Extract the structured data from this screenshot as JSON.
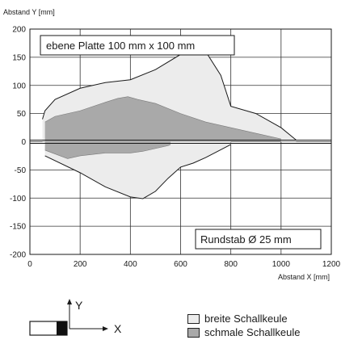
{
  "chart_data": {
    "type": "area",
    "ylabel": "Abstand Y [mm]",
    "xlabel": "Abstand X [mm]",
    "xlim": [
      0,
      1200
    ],
    "ylim": [
      -200,
      200
    ],
    "x_ticks": [
      0,
      200,
      400,
      600,
      800,
      1000,
      1200
    ],
    "y_ticks": [
      200,
      150,
      100,
      50,
      0,
      -50,
      -100,
      -150,
      -200
    ],
    "grid": true,
    "panels": [
      {
        "label": "ebene Platte 100 mm x 100 mm",
        "region": "upper",
        "series": [
          {
            "name": "breite Schallkeule",
            "x": [
              50,
              60,
              100,
              200,
              300,
              400,
              500,
              600,
              650,
              700,
              760,
              800,
              900,
              1000,
              1060
            ],
            "y": [
              40,
              55,
              75,
              95,
              105,
              110,
              128,
              155,
              163,
              160,
              118,
              63,
              50,
              25,
              3
            ]
          },
          {
            "name": "schmale Schallkeule",
            "x": [
              60,
              100,
              200,
              300,
              350,
              390,
              430,
              500,
              600,
              700,
              800,
              900,
              1000
            ],
            "y": [
              35,
              45,
              55,
              70,
              77,
              80,
              75,
              68,
              50,
              35,
              25,
              15,
              5
            ]
          }
        ]
      },
      {
        "label": "Rundstab Ø 25 mm",
        "region": "lower",
        "series": [
          {
            "name": "breite Schallkeule",
            "x": [
              60,
              200,
              300,
              400,
              450,
              500,
              550,
              600,
              650,
              700,
              800
            ],
            "y": [
              -25,
              -55,
              -80,
              -98,
              -101,
              -88,
              -65,
              -45,
              -38,
              -28,
              -5
            ]
          },
          {
            "name": "schmale Schallkeule",
            "x": [
              60,
              150,
              200,
              300,
              400,
              450,
              500,
              550,
              560
            ],
            "y": [
              -15,
              -30,
              -25,
              -20,
              -20,
              -17,
              -12,
              -7,
              -5
            ]
          }
        ]
      }
    ],
    "colors": {
      "breite Schallkeule": "#ececec",
      "schmale Schallkeule": "#a9a9a9",
      "outline": "#1a1a1a",
      "grid": "#333333"
    }
  },
  "diagram": {
    "axis_y_label": "Y",
    "axis_x_label": "X",
    "sensor_icon": "ultrasonic-sensor-icon"
  },
  "legend": [
    {
      "label": "breite Schallkeule"
    },
    {
      "label": "schmale Schallkeule"
    }
  ]
}
